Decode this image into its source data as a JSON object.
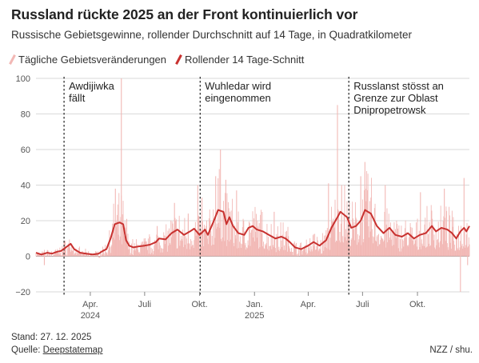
{
  "title": "Russland rückte 2025 an der Front kontinuierlich vor",
  "subtitle": "Russische Gebietsgewinne, rollender Durchschnitt auf 14 Tage, in Quadratkilometer",
  "legend": {
    "daily": "Tägliche Gebietsveränderungen",
    "avg": "Rollender 14 Tage-Schnitt"
  },
  "footer": {
    "stand": "Stand: 27. 12. 2025",
    "quelle_label": "Quelle:",
    "quelle_link": "Deepstatemap",
    "credit": "NZZ / shu."
  },
  "colors": {
    "daily": "#f2b8b5",
    "avg": "#c8312f",
    "grid": "#d9d9d9",
    "text": "#222222",
    "axis_text": "#555555"
  },
  "chart_data": {
    "type": "line",
    "x_range": [
      "2024-01-01",
      "2025-12-27"
    ],
    "ylim": [
      -20,
      100
    ],
    "yticks": [
      -20,
      0,
      20,
      40,
      60,
      80,
      100
    ],
    "grid": true,
    "legend_position": "top-left",
    "xticks": [
      {
        "date": "2024-04-01",
        "label": "Apr.",
        "year": "2024"
      },
      {
        "date": "2024-07-01",
        "label": "Juli",
        "year": ""
      },
      {
        "date": "2024-10-01",
        "label": "Okt.",
        "year": ""
      },
      {
        "date": "2025-01-01",
        "label": "Jan.",
        "year": "2025"
      },
      {
        "date": "2025-04-01",
        "label": "Apr.",
        "year": ""
      },
      {
        "date": "2025-07-01",
        "label": "Juli",
        "year": ""
      },
      {
        "date": "2025-10-01",
        "label": "Okt.",
        "year": ""
      }
    ],
    "annotations": [
      {
        "date": "2024-02-17",
        "lines": [
          "Awdijiwka",
          "fällt"
        ]
      },
      {
        "date": "2024-10-02",
        "lines": [
          "Wuhledar wird",
          "eingenommen"
        ]
      },
      {
        "date": "2025-06-08",
        "lines": [
          "Russlanst stösst an",
          "Grenze zur Oblast",
          "Dnipropetrowsk"
        ]
      }
    ],
    "series": [
      {
        "name": "Rollender 14 Tage-Schnitt",
        "style": "line",
        "points": [
          [
            "2024-01-01",
            2
          ],
          [
            "2024-01-10",
            1
          ],
          [
            "2024-01-20",
            2
          ],
          [
            "2024-01-28",
            1.5
          ],
          [
            "2024-02-05",
            2.5
          ],
          [
            "2024-02-12",
            3
          ],
          [
            "2024-02-20",
            5
          ],
          [
            "2024-02-28",
            7
          ],
          [
            "2024-03-05",
            4
          ],
          [
            "2024-03-15",
            2
          ],
          [
            "2024-03-25",
            1.5
          ],
          [
            "2024-04-05",
            1
          ],
          [
            "2024-04-15",
            1.5
          ],
          [
            "2024-04-22",
            3
          ],
          [
            "2024-04-28",
            4
          ],
          [
            "2024-05-05",
            10
          ],
          [
            "2024-05-12",
            18
          ],
          [
            "2024-05-20",
            19
          ],
          [
            "2024-05-26",
            18
          ],
          [
            "2024-05-31",
            9
          ],
          [
            "2024-06-05",
            6
          ],
          [
            "2024-06-12",
            5
          ],
          [
            "2024-06-20",
            5.5
          ],
          [
            "2024-07-01",
            6
          ],
          [
            "2024-07-10",
            6.5
          ],
          [
            "2024-07-20",
            8
          ],
          [
            "2024-07-25",
            10
          ],
          [
            "2024-08-05",
            9.5
          ],
          [
            "2024-08-15",
            13
          ],
          [
            "2024-08-25",
            15
          ],
          [
            "2024-09-05",
            12
          ],
          [
            "2024-09-15",
            14
          ],
          [
            "2024-09-22",
            15.5
          ],
          [
            "2024-10-01",
            12
          ],
          [
            "2024-10-10",
            15
          ],
          [
            "2024-10-15",
            12
          ],
          [
            "2024-10-20",
            16
          ],
          [
            "2024-10-25",
            20
          ],
          [
            "2024-11-01",
            26
          ],
          [
            "2024-11-10",
            25
          ],
          [
            "2024-11-15",
            18
          ],
          [
            "2024-11-20",
            22
          ],
          [
            "2024-11-26",
            17
          ],
          [
            "2024-12-05",
            13
          ],
          [
            "2024-12-15",
            12
          ],
          [
            "2024-12-22",
            16
          ],
          [
            "2024-12-29",
            17
          ],
          [
            "2025-01-05",
            15
          ],
          [
            "2025-01-15",
            14
          ],
          [
            "2025-01-25",
            12
          ],
          [
            "2025-02-05",
            10
          ],
          [
            "2025-02-15",
            11
          ],
          [
            "2025-02-22",
            10
          ],
          [
            "2025-03-01",
            8
          ],
          [
            "2025-03-10",
            5
          ],
          [
            "2025-03-20",
            4
          ],
          [
            "2025-04-01",
            6
          ],
          [
            "2025-04-10",
            8
          ],
          [
            "2025-04-20",
            6
          ],
          [
            "2025-05-01",
            9
          ],
          [
            "2025-05-10",
            16
          ],
          [
            "2025-05-20",
            22
          ],
          [
            "2025-05-25",
            25
          ],
          [
            "2025-06-05",
            22
          ],
          [
            "2025-06-12",
            16
          ],
          [
            "2025-06-20",
            17
          ],
          [
            "2025-06-28",
            20
          ],
          [
            "2025-07-05",
            26
          ],
          [
            "2025-07-15",
            24
          ],
          [
            "2025-07-25",
            17
          ],
          [
            "2025-08-05",
            13
          ],
          [
            "2025-08-15",
            16
          ],
          [
            "2025-08-25",
            12
          ],
          [
            "2025-09-05",
            11
          ],
          [
            "2025-09-15",
            13
          ],
          [
            "2025-09-25",
            10
          ],
          [
            "2025-10-05",
            12
          ],
          [
            "2025-10-15",
            13
          ],
          [
            "2025-10-25",
            17
          ],
          [
            "2025-11-01",
            14
          ],
          [
            "2025-11-10",
            16
          ],
          [
            "2025-11-20",
            15
          ],
          [
            "2025-11-28",
            13
          ],
          [
            "2025-12-05",
            10
          ],
          [
            "2025-12-12",
            14
          ],
          [
            "2025-12-18",
            16
          ],
          [
            "2025-12-22",
            14
          ],
          [
            "2025-12-27",
            17
          ]
        ]
      },
      {
        "name": "Tägliche Gebietsveränderungen",
        "style": "daily-bars",
        "spikes": [
          [
            "2024-01-15",
            -5
          ],
          [
            "2024-02-17",
            8
          ],
          [
            "2024-05-13",
            38
          ],
          [
            "2024-05-23",
            100
          ],
          [
            "2024-06-01",
            21
          ],
          [
            "2024-07-22",
            17
          ],
          [
            "2024-08-20",
            30
          ],
          [
            "2024-09-12",
            24
          ],
          [
            "2024-09-28",
            40
          ],
          [
            "2024-10-05",
            33
          ],
          [
            "2024-10-28",
            45
          ],
          [
            "2024-11-05",
            60
          ],
          [
            "2024-11-14",
            43
          ],
          [
            "2024-12-02",
            37
          ],
          [
            "2025-02-03",
            25
          ],
          [
            "2025-05-05",
            41
          ],
          [
            "2025-05-20",
            85
          ],
          [
            "2025-05-27",
            40
          ],
          [
            "2025-06-28",
            45
          ],
          [
            "2025-07-05",
            53
          ],
          [
            "2025-08-08",
            40
          ],
          [
            "2025-10-06",
            36
          ],
          [
            "2025-11-15",
            38
          ],
          [
            "2025-12-12",
            -20
          ],
          [
            "2025-12-18",
            44
          ],
          [
            "2025-12-24",
            -5
          ]
        ]
      }
    ]
  }
}
